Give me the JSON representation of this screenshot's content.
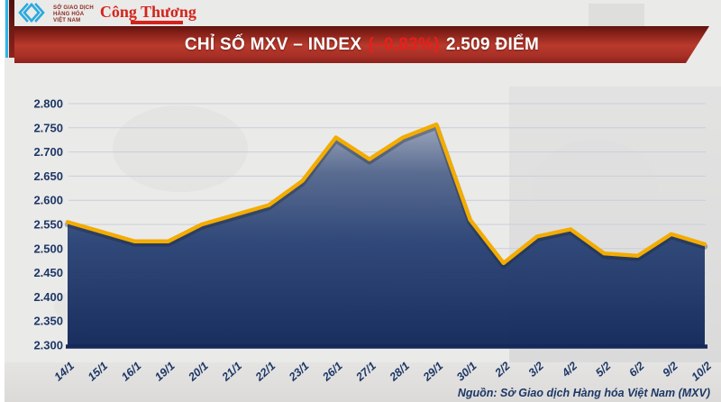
{
  "header": {
    "mxv_logo": {
      "line1": "SỞ GIAO DỊCH",
      "line2": "HÀNG HÓA",
      "line3": "VIỆT NAM",
      "chevron_color": "#2aa9e0"
    },
    "congthuong_logo": {
      "text": "Công Thương",
      "color": "#d2241c"
    }
  },
  "banner": {
    "title": "CHỈ SỐ MXV – INDEX",
    "change": "(–0,83%)",
    "points": "2.509 ĐIỂM",
    "change_color": "#e81e1a"
  },
  "footer": {
    "source": "Nguồn: Sở Giao dịch Hàng hóa Việt Nam (MXV)"
  },
  "chart_data": {
    "type": "area",
    "title": "CHỈ SỐ MXV – INDEX (–0,83%) 2.509 ĐIỂM",
    "x": [
      "14/1",
      "15/1",
      "16/1",
      "19/1",
      "20/1",
      "21/1",
      "22/1",
      "23/1",
      "26/1",
      "27/1",
      "28/1",
      "29/1",
      "30/1",
      "2/2",
      "3/2",
      "4/2",
      "5/2",
      "6/2",
      "9/2",
      "10/2"
    ],
    "values": [
      2.555,
      2.535,
      2.515,
      2.515,
      2.55,
      2.57,
      2.59,
      2.64,
      2.73,
      2.685,
      2.73,
      2.757,
      2.56,
      2.47,
      2.525,
      2.54,
      2.49,
      2.485,
      2.53,
      2.509
    ],
    "ylim": [
      2.3,
      2.8
    ],
    "yticks": [
      "2.300",
      "2.350",
      "2.400",
      "2.450",
      "2.500",
      "2.550",
      "2.600",
      "2.650",
      "2.700",
      "2.750",
      "2.800"
    ],
    "xlabel": "",
    "ylabel": "",
    "grid": true,
    "legend": false,
    "line_color": "#f3ac00",
    "line_shadow_color": "rgba(25,30,45,0.32)",
    "fill_gradient": [
      "#9aa5bb",
      "#55688e",
      "#2c4577",
      "#13295a"
    ],
    "label_color": "#1d3766",
    "grid_color": "#c9ced8",
    "axis_color": "#14295a",
    "watermark_color": "#dedfde"
  }
}
